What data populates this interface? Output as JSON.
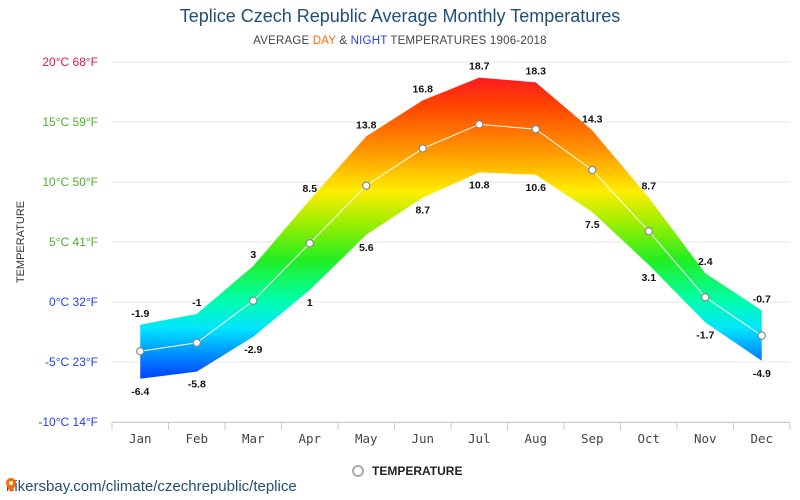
{
  "title": "Teplice Czech Republic Average Monthly Temperatures",
  "subtitle": {
    "prefix": "AVERAGE ",
    "day": "DAY",
    "mid": " & ",
    "night": "NIGHT",
    "suffix": " TEMPERATURES 1906-2018"
  },
  "footer": {
    "url": "hikersbay.com/climate/czechrepublic/teplice"
  },
  "colors": {
    "title": "#1f4e79",
    "day": "#ff6a00",
    "night": "#1e3dff",
    "line": "#ffffff",
    "grid": "#e6e6e6"
  },
  "icons": {
    "footer": "map-pin-icon",
    "legend": "circle-marker-icon"
  },
  "chart_data": {
    "type": "area",
    "title": "Teplice Czech Republic Average Monthly Temperatures",
    "subtitle": "AVERAGE DAY & NIGHT TEMPERATURES 1906-2018",
    "xlabel": "",
    "ylabel": "TEMPERATURE",
    "ylim": [
      -10,
      20
    ],
    "grid": true,
    "legend_position": "bottom",
    "categories": [
      "Jan",
      "Feb",
      "Mar",
      "Apr",
      "May",
      "Jun",
      "Jul",
      "Aug",
      "Sep",
      "Oct",
      "Nov",
      "Dec"
    ],
    "y_ticks": [
      {
        "value": 20,
        "label": "20°C 68°F",
        "color": "#e8174a"
      },
      {
        "value": 15,
        "label": "15°C 59°F",
        "color": "#4caf2a"
      },
      {
        "value": 10,
        "label": "10°C 50°F",
        "color": "#4caf2a"
      },
      {
        "value": 5,
        "label": "5°C 41°F",
        "color": "#4caf2a"
      },
      {
        "value": 0,
        "label": "0°C 32°F",
        "color": "#1e3dff"
      },
      {
        "value": -5,
        "label": "-5°C 23°F",
        "color": "#1e3dff"
      },
      {
        "value": -10,
        "label": "-10°C 14°F",
        "color": "#1e3dff"
      }
    ],
    "series": [
      {
        "key": "day",
        "values": [
          -1.9,
          -1,
          3,
          8.5,
          13.8,
          16.8,
          18.7,
          18.3,
          14.3,
          8.7,
          2.4,
          -0.7
        ]
      },
      {
        "name": "TEMPERATURE",
        "key": "average",
        "values": [
          -4.1,
          -3.4,
          0.1,
          4.9,
          9.7,
          12.8,
          14.8,
          14.4,
          11.0,
          5.9,
          0.4,
          -2.8
        ]
      },
      {
        "key": "night",
        "values": [
          -6.4,
          -5.8,
          -2.9,
          1,
          5.6,
          8.7,
          10.8,
          10.6,
          7.5,
          3.1,
          -1.7,
          -4.9
        ]
      }
    ],
    "day_labels": [
      "-1.9",
      "-1",
      "3",
      "8.5",
      "13.8",
      "16.8",
      "18.7",
      "18.3",
      "14.3",
      "8.7",
      "2.4",
      "-0.7"
    ],
    "night_labels": [
      "-6.4",
      "-5.8",
      "-2.9",
      "1",
      "5.6",
      "8.7",
      "10.8",
      "10.6",
      "7.5",
      "3.1",
      "-1.7",
      "-4.9"
    ]
  }
}
